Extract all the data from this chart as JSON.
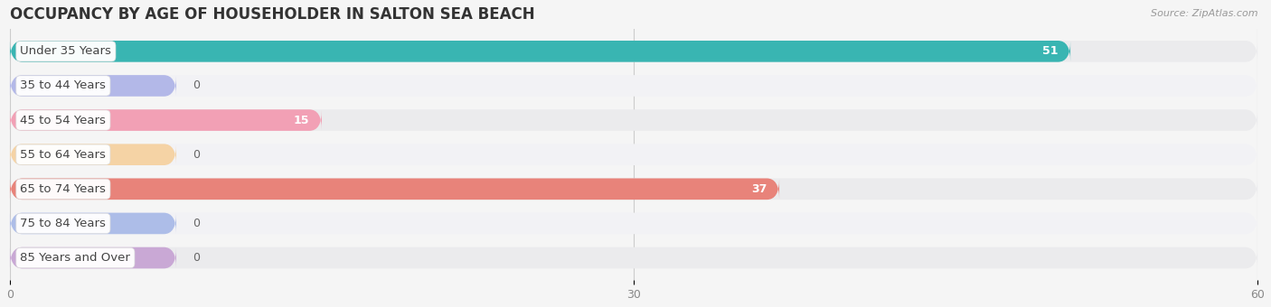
{
  "title": "OCCUPANCY BY AGE OF HOUSEHOLDER IN SALTON SEA BEACH",
  "source": "Source: ZipAtlas.com",
  "categories": [
    "Under 35 Years",
    "35 to 44 Years",
    "45 to 54 Years",
    "55 to 64 Years",
    "65 to 74 Years",
    "75 to 84 Years",
    "85 Years and Over"
  ],
  "values": [
    51,
    0,
    15,
    0,
    37,
    0,
    0
  ],
  "bar_colors": [
    "#39b5b2",
    "#b3b8e8",
    "#f2a0b5",
    "#f5d3a5",
    "#e8837a",
    "#adbde8",
    "#c9a8d5"
  ],
  "bg_row_colors": [
    "#ebebed",
    "#f2f2f5",
    "#ebebed",
    "#f2f2f5",
    "#ebebed",
    "#f2f2f5",
    "#ebebed"
  ],
  "xlim": [
    0,
    60
  ],
  "xticks": [
    0,
    30,
    60
  ],
  "title_fontsize": 12,
  "label_fontsize": 9.5,
  "value_fontsize": 9,
  "background_color": "#f5f5f5",
  "bar_height": 0.62,
  "full_bar_value": 60
}
